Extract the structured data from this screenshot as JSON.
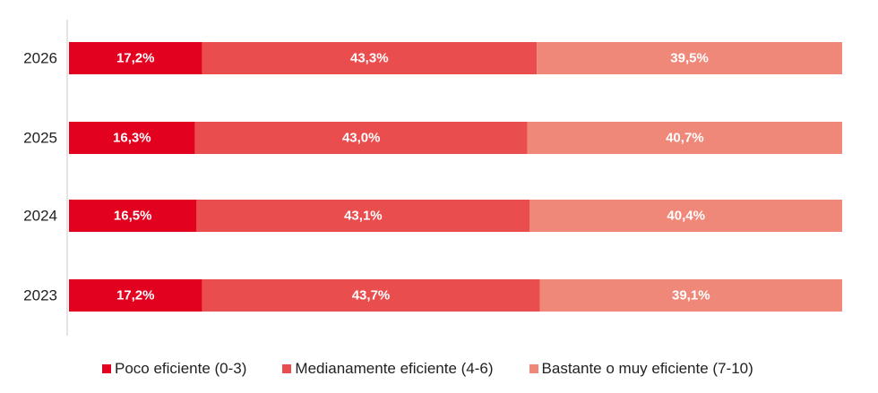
{
  "chart_data": {
    "type": "bar",
    "orientation": "horizontal",
    "stacked": true,
    "categories": [
      "2026",
      "2025",
      "2024",
      "2023"
    ],
    "series": [
      {
        "name": "Poco eficiente (0-3)",
        "values": [
          17.2,
          16.3,
          16.5,
          17.2
        ],
        "labels": [
          "17,2%",
          "16,3%",
          "16,5%",
          "17,2%"
        ],
        "color": "#E2011F"
      },
      {
        "name": "Medianamente eficiente (4-6)",
        "values": [
          43.3,
          43.0,
          43.1,
          43.7
        ],
        "labels": [
          "43,3%",
          "43,0%",
          "43,1%",
          "43,7%"
        ],
        "color": "#EA4D4D"
      },
      {
        "name": "Bastante o muy eficiente (7-10)",
        "values": [
          39.5,
          40.7,
          40.4,
          39.1
        ],
        "labels": [
          "39,5%",
          "40,7%",
          "40,4%",
          "39,1%"
        ],
        "color": "#F0887A"
      }
    ],
    "xlim": [
      0,
      100
    ],
    "grid": false,
    "legend_position": "bottom"
  }
}
